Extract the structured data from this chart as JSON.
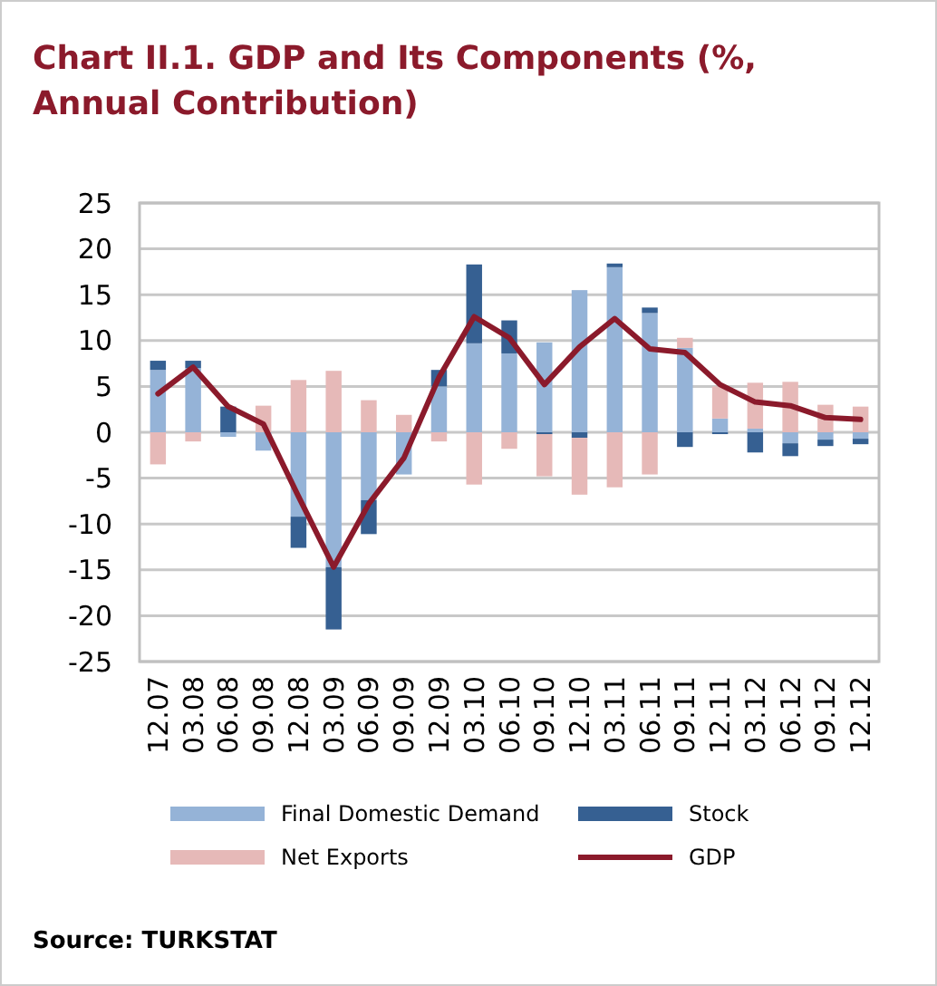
{
  "chart_data": {
    "type": "bar",
    "stacked": true,
    "title": "Chart II.1. GDP and Its Components (%, Annual Contribution)",
    "categories": [
      "12.07",
      "03.08",
      "06.08",
      "09.08",
      "12.08",
      "03.09",
      "06.09",
      "09.09",
      "12.09",
      "03.10",
      "06.10",
      "09.10",
      "12.10",
      "03.11",
      "06.11",
      "09.11",
      "12.11",
      "03.12",
      "06.12",
      "09.12",
      "12.12"
    ],
    "series": [
      {
        "name": "Final Domestic Demand",
        "color": "#95b3d7",
        "values": [
          6.8,
          7.0,
          -0.5,
          -2.0,
          -9.2,
          -14.7,
          -7.4,
          -4.6,
          5.0,
          9.7,
          8.6,
          9.8,
          15.5,
          18.0,
          13.0,
          9.2,
          1.5,
          0.4,
          -1.2,
          -0.8,
          -0.7
        ]
      },
      {
        "name": "Stock",
        "color": "#366092",
        "values": [
          1.0,
          0.8,
          2.8,
          null,
          -3.4,
          -6.8,
          -3.7,
          0,
          1.8,
          8.6,
          3.6,
          -0.2,
          -0.6,
          0.4,
          0.6,
          -1.6,
          -0.2,
          -2.2,
          -1.4,
          -0.7,
          -0.6
        ]
      },
      {
        "name": "Net Exports",
        "color": "#e6b9b8",
        "values": [
          -3.5,
          -1.0,
          null,
          2.9,
          5.7,
          6.7,
          3.5,
          1.9,
          -1.0,
          -5.7,
          -1.8,
          -4.6,
          -6.2,
          -6.0,
          -4.6,
          1.1,
          3.5,
          5.0,
          5.5,
          3.0,
          2.8
        ]
      },
      {
        "name": "GDP",
        "type": "line",
        "color": "#8b1a2b",
        "values": [
          4.2,
          7.1,
          2.8,
          0.9,
          -7.0,
          -14.7,
          -7.8,
          -2.8,
          6.0,
          12.6,
          10.3,
          5.2,
          9.3,
          12.4,
          9.1,
          8.7,
          5.2,
          3.3,
          2.9,
          1.6,
          1.4
        ]
      }
    ],
    "ylim": [
      -25,
      25
    ],
    "yticks": [
      -25,
      -20,
      -15,
      -10,
      -5,
      0,
      5,
      10,
      15,
      20,
      25
    ],
    "grid": "y",
    "legend": "bottom",
    "annotations": [
      "Source: TURKSTAT"
    ]
  }
}
